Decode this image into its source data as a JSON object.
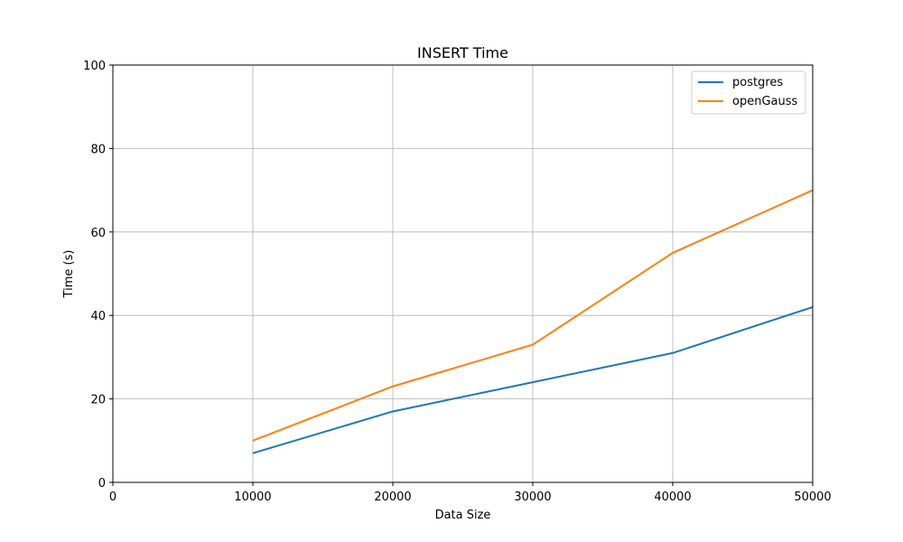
{
  "chart_data": {
    "type": "line",
    "title": "INSERT Time",
    "xlabel": "Data Size",
    "ylabel": "Time (s)",
    "x": [
      10000,
      20000,
      30000,
      40000,
      50000
    ],
    "xlim": [
      0,
      50000
    ],
    "ylim": [
      0,
      100
    ],
    "xticks": [
      0,
      10000,
      20000,
      30000,
      40000,
      50000
    ],
    "yticks": [
      0,
      20,
      40,
      60,
      80,
      100
    ],
    "grid": true,
    "legend_position": "top-right",
    "series": [
      {
        "name": "postgres",
        "color": "#1f77b4",
        "values": [
          7,
          17,
          24,
          31,
          42
        ]
      },
      {
        "name": "openGauss",
        "color": "#ff7f0e",
        "values": [
          10,
          23,
          33,
          55,
          70
        ]
      }
    ]
  }
}
